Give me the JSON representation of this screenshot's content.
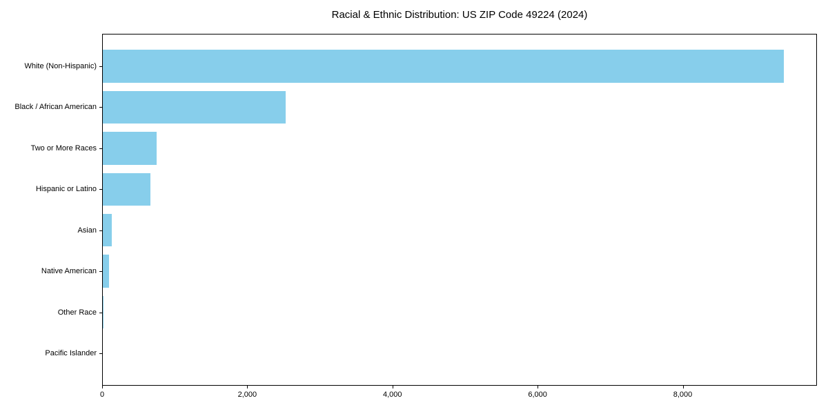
{
  "chart_data": {
    "type": "bar",
    "orientation": "horizontal",
    "title": "Racial & Ethnic Distribution: US ZIP Code 49224 (2024)",
    "categories": [
      "White (Non-Hispanic)",
      "Black / African American",
      "Two or More Races",
      "Hispanic or Latino",
      "Asian",
      "Native American",
      "Other Race",
      "Pacific Islander"
    ],
    "values": [
      9380,
      2520,
      740,
      660,
      120,
      88,
      10,
      0
    ],
    "xlabel": "",
    "ylabel": "",
    "xlim": [
      0,
      9830
    ],
    "xtick_values": [
      0,
      2000,
      4000,
      6000,
      8000
    ],
    "xtick_labels": [
      "0",
      "2,000",
      "4,000",
      "6,000",
      "8,000"
    ],
    "bar_color": "#87CEEB",
    "grid": false,
    "legend": null
  }
}
